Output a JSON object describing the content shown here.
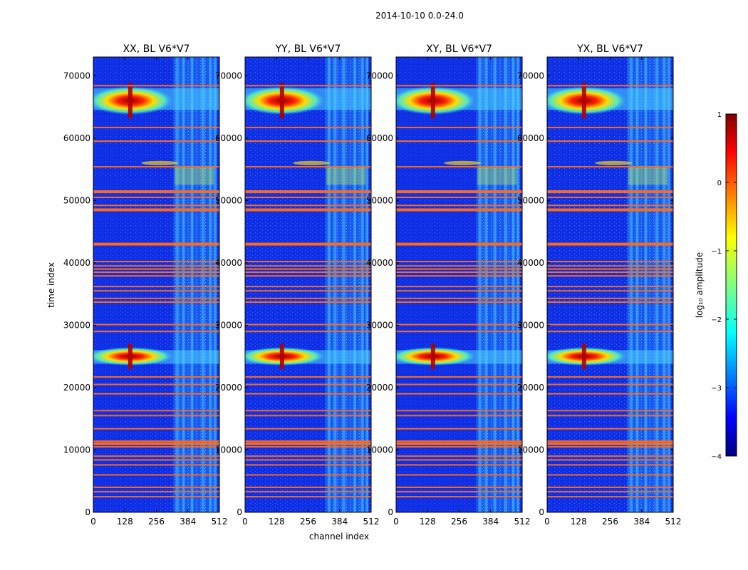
{
  "chart_data": {
    "type": "heatmap",
    "suptitle": "2014-10-10 0.0-24.0",
    "xlabel": "channel index",
    "ylabel": "time index",
    "xlim": [
      0,
      512
    ],
    "ylim": [
      0,
      73000
    ],
    "xticks": [
      0,
      128,
      256,
      384,
      512
    ],
    "yticks": [
      0,
      10000,
      20000,
      30000,
      40000,
      50000,
      60000,
      70000
    ],
    "panels": [
      {
        "title": "XX, BL V6*V7"
      },
      {
        "title": "YY, BL V6*V7"
      },
      {
        "title": "XY, BL V6*V7"
      },
      {
        "title": "YX, BL V6*V7"
      }
    ],
    "colorbar": {
      "label": "log₁₀ amplitude",
      "min": -4,
      "max": 1,
      "ticks": [
        -4,
        -3,
        -2,
        -1,
        0,
        1
      ],
      "tick_labels": [
        "−4",
        "−3",
        "−2",
        "−1",
        "0",
        "1"
      ],
      "colormap": "jet"
    },
    "flagged_rows": [
      2500,
      3300,
      4000,
      6000,
      7600,
      8400,
      9000,
      10500,
      11000,
      11400,
      13400,
      15500,
      16300,
      19000,
      20500,
      21700,
      29000,
      30100,
      33700,
      34300,
      35500,
      36200,
      37900,
      38500,
      39000,
      39500,
      40200,
      43000,
      48500,
      49200,
      50500,
      51400,
      55400,
      59500,
      61700,
      68400
    ],
    "colors": {
      "background": "#0f2ee6",
      "flag_line": "#ff6a1a",
      "spectral_band": "#4fd6ff",
      "source_core": "#b00000"
    }
  }
}
